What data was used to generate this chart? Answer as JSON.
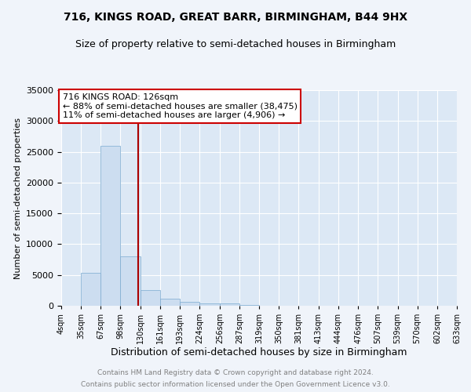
{
  "title": "716, KINGS ROAD, GREAT BARR, BIRMINGHAM, B44 9HX",
  "subtitle": "Size of property relative to semi-detached houses in Birmingham",
  "xlabel": "Distribution of semi-detached houses by size in Birmingham",
  "ylabel": "Number of semi-detached properties",
  "footnote1": "Contains HM Land Registry data © Crown copyright and database right 2024.",
  "footnote2": "Contains public sector information licensed under the Open Government Licence v3.0.",
  "annotation_title": "716 KINGS ROAD: 126sqm",
  "annotation_line1": "← 88% of semi-detached houses are smaller (38,475)",
  "annotation_line2": "11% of semi-detached houses are larger (4,906) →",
  "property_size": 126,
  "bar_edges": [
    4,
    35,
    67,
    98,
    130,
    161,
    193,
    224,
    256,
    287,
    319,
    350,
    381,
    413,
    444,
    476,
    507,
    539,
    570,
    602,
    633
  ],
  "bar_heights": [
    0,
    5400,
    26000,
    8000,
    2500,
    1200,
    700,
    400,
    350,
    100,
    50,
    20,
    10,
    5,
    2,
    1,
    1,
    0,
    0,
    0
  ],
  "bar_color": "#ccddf0",
  "bar_edgecolor": "#7baad0",
  "vline_color": "#aa0000",
  "annotation_box_color": "#cc0000",
  "ylim": [
    0,
    35000
  ],
  "yticks": [
    0,
    5000,
    10000,
    15000,
    20000,
    25000,
    30000,
    35000
  ],
  "bg_color": "#f0f4fa",
  "plot_bg_color": "#dce8f5",
  "grid_color": "#ffffff",
  "title_fontsize": 10,
  "subtitle_fontsize": 9
}
